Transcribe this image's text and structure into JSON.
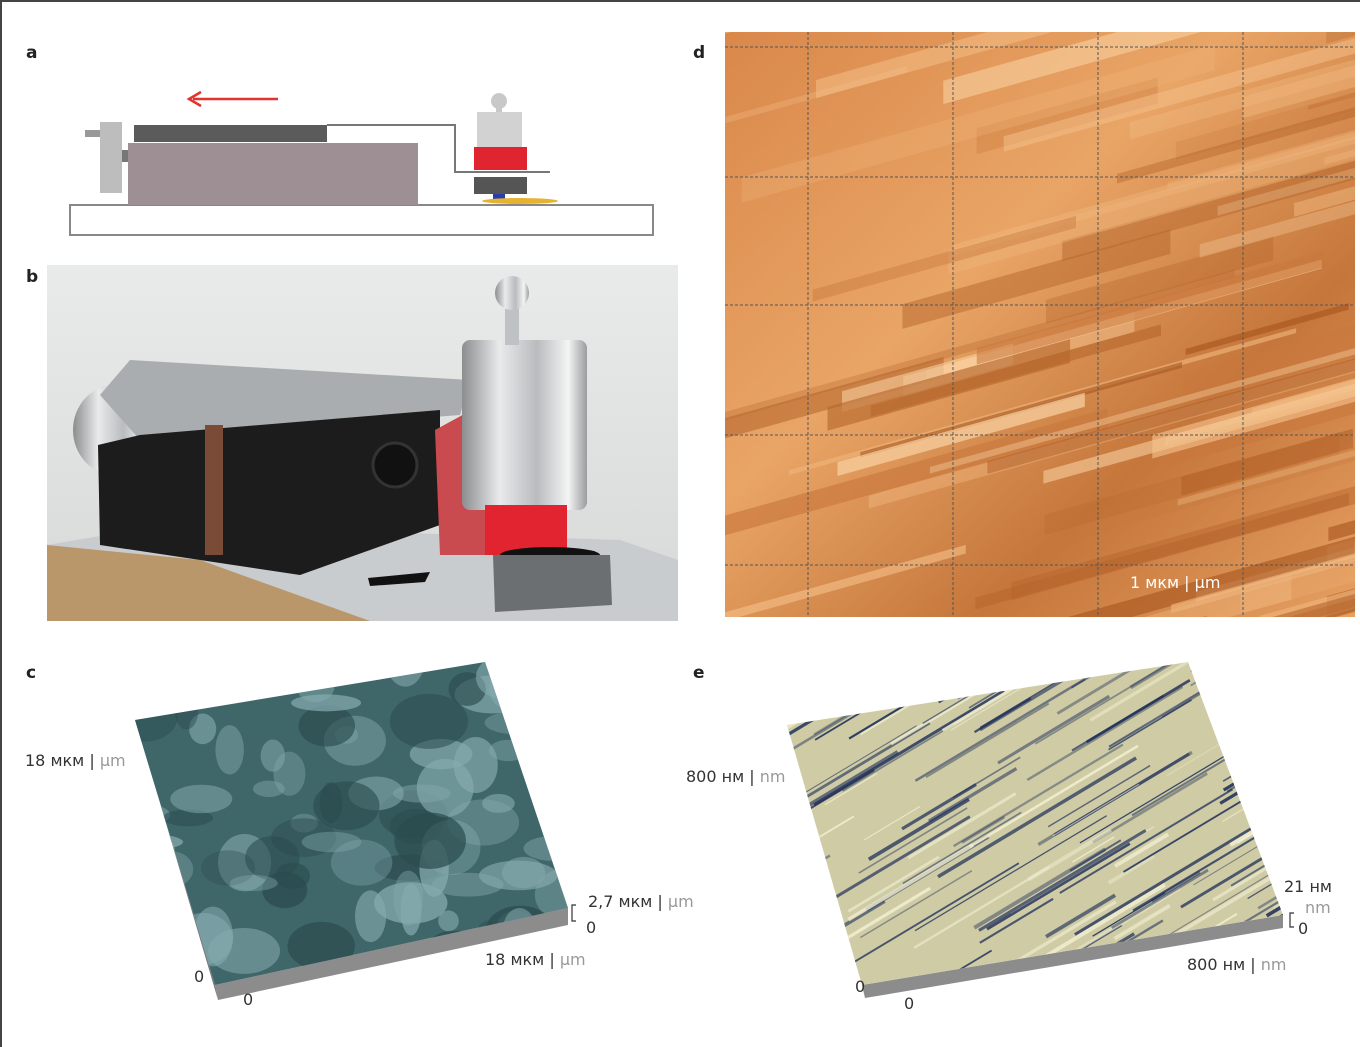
{
  "panels": {
    "a": {
      "label": "a"
    },
    "b": {
      "label": "b"
    },
    "c": {
      "label": "c",
      "y_axis": {
        "ru": "18 мкм |",
        "en": "µm"
      },
      "z_axis": {
        "ru": "2,7 мкм |",
        "en": "µm",
        "zero": "0"
      },
      "x_axis": {
        "ru": "18 мкм |",
        "en": "µm"
      },
      "origin_y": "0",
      "origin_x": "0"
    },
    "d": {
      "label": "d",
      "scale_bar": {
        "ru": "1 мкм |",
        "en": "µm"
      }
    },
    "e": {
      "label": "e",
      "y_axis": {
        "ru": "800 нм |",
        "en": "nm"
      },
      "z_axis": {
        "ru": "21 нм",
        "en": "nm",
        "zero": "0"
      },
      "x_axis": {
        "ru": "800 нм |",
        "en": "nm"
      },
      "origin_y": "0",
      "origin_x": "0"
    }
  }
}
